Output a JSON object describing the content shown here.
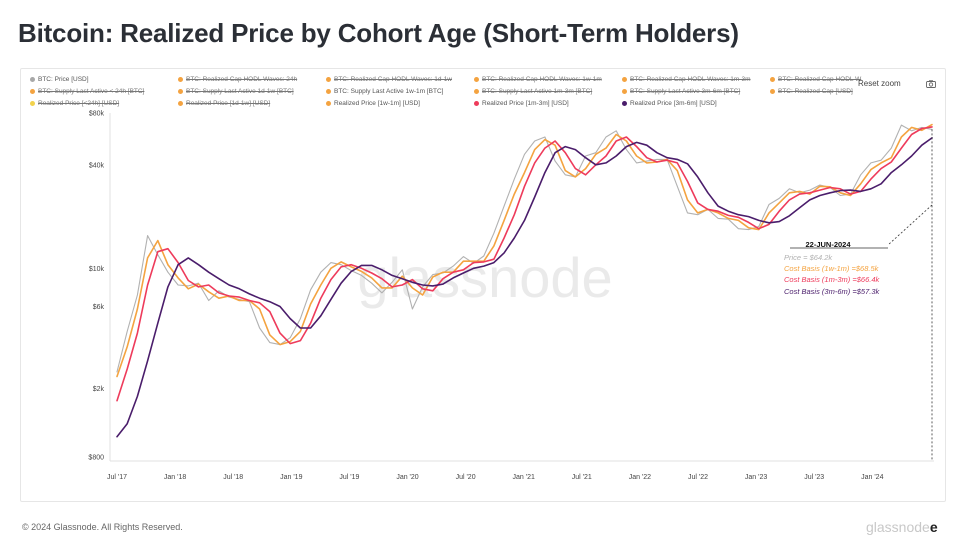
{
  "title": "Bitcoin: Realized Price by Cohort Age (Short-Term Holders)",
  "toolbar": {
    "reset_zoom": "Reset zoom"
  },
  "footer": "© 2024 Glassnode. All Rights Reserved.",
  "logo": {
    "visible": "e",
    "faded": "glassnode"
  },
  "watermark": "glassnode",
  "legend": [
    {
      "label": "BTC: Price [USD]",
      "color": "#a8a8a8",
      "active": true
    },
    {
      "label": "BTC: Realized Cap HODL Waves: 24h",
      "color": "#f4a340",
      "active": false
    },
    {
      "label": "BTC: Realized Cap HODL Waves: 1d-1w",
      "color": "#f4a340",
      "active": false
    },
    {
      "label": "BTC: Realized Cap HODL Waves: 1w-1m",
      "color": "#f4a340",
      "active": false
    },
    {
      "label": "BTC: Realized Cap HODL Waves: 1m-3m",
      "color": "#f4a340",
      "active": false
    },
    {
      "label": "BTC: Realized Cap HODL W",
      "color": "#f4a340",
      "active": false
    },
    {
      "label": "BTC: Supply Last Active < 24h [BTC]",
      "color": "#f4a340",
      "active": false
    },
    {
      "label": "BTC: Supply Last Active 1d-1w [BTC]",
      "color": "#f4a340",
      "active": false
    },
    {
      "label": "BTC: Supply Last Active 1w-1m [BTC]",
      "color": "#f4a340",
      "active": true
    },
    {
      "label": "BTC: Supply Last Active 1m-3m [BTC]",
      "color": "#f4a340",
      "active": false
    },
    {
      "label": "BTC: Supply Last Active 3m-6m [BTC]",
      "color": "#f4a340",
      "active": false
    },
    {
      "label": "BTC: Realized Cap [USD]",
      "color": "#f4a340",
      "active": false
    },
    {
      "label": "Realized Price [<24h] [USD]",
      "color": "#f2d24c",
      "active": false
    },
    {
      "label": "Realized Price [1d-1w] [USD]",
      "color": "#f4a340",
      "active": false
    },
    {
      "label": "Realized Price [1w-1m] [USD]",
      "color": "#f4a340",
      "active": true
    },
    {
      "label": "Realized Price [1m-3m] [USD]",
      "color": "#ee3b5b",
      "active": true
    },
    {
      "label": "Realized Price [3m-6m] [USD]",
      "color": "#4a1d6b",
      "active": true
    }
  ],
  "tooltip": {
    "date": "22-JUN-2024",
    "price": "Price = $64.2k",
    "cb1": "Cost Basis (1w-1m) =$68.5k",
    "cb2": "Cost Basis (1m-3m) =$66.4k",
    "cb3": "Cost Basis (3m-6m) =$57.3k",
    "price_color": "#b0b0b0",
    "cb1_color": "#f4a340",
    "cb2_color": "#ee3b5b",
    "cb3_color": "#4a1d6b"
  },
  "chart_data": {
    "type": "line",
    "title": "Bitcoin: Realized Price by Cohort Age (Short-Term Holders)",
    "y_scale": "log",
    "ylim": [
      800,
      80000
    ],
    "y_ticks": [
      {
        "label": "$80k",
        "value": 80000
      },
      {
        "label": "$40k",
        "value": 40000
      },
      {
        "label": "$10k",
        "value": 10000
      },
      {
        "label": "$6k",
        "value": 6000
      },
      {
        "label": "$2k",
        "value": 2000
      },
      {
        "label": "$800",
        "value": 800
      }
    ],
    "x_ticks": [
      "Jul '17",
      "Jan '18",
      "Jul '18",
      "Jan '19",
      "Jul '19",
      "Jan '20",
      "Jul '20",
      "Jan '21",
      "Jul '21",
      "Jan '22",
      "Jul '22",
      "Jan '23",
      "Jul '23",
      "Jan '24"
    ],
    "grid": false,
    "legend_position": "top",
    "x": [
      "Jul '17",
      "Sep '17",
      "Nov '17",
      "Dec '17",
      "Jan '18",
      "Feb '18",
      "Mar '18",
      "Apr '18",
      "May '18",
      "Jun '18",
      "Jul '18",
      "Aug '18",
      "Sep '18",
      "Oct '18",
      "Nov '18",
      "Dec '18",
      "Jan '19",
      "Mar '19",
      "Apr '19",
      "May '19",
      "Jun '19",
      "Jul '19",
      "Aug '19",
      "Sep '19",
      "Oct '19",
      "Nov '19",
      "Dec '19",
      "Jan '20",
      "Feb '20",
      "Mar '20",
      "Apr '20",
      "May '20",
      "Jun '20",
      "Jul '20",
      "Aug '20",
      "Sep '20",
      "Oct '20",
      "Nov '20",
      "Dec '20",
      "Jan '21",
      "Feb '21",
      "Mar '21",
      "Apr '21",
      "May '21",
      "Jun '21",
      "Jul '21",
      "Aug '21",
      "Sep '21",
      "Oct '21",
      "Nov '21",
      "Dec '21",
      "Jan '22",
      "Feb '22",
      "Mar '22",
      "Apr '22",
      "May '22",
      "Jun '22",
      "Jul '22",
      "Aug '22",
      "Sep '22",
      "Oct '22",
      "Nov '22",
      "Dec '22",
      "Jan '23",
      "Feb '23",
      "Mar '23",
      "Apr '23",
      "May '23",
      "Jun '23",
      "Jul '23",
      "Aug '23",
      "Sep '23",
      "Oct '23",
      "Nov '23",
      "Dec '23",
      "Jan '24",
      "Feb '24",
      "Mar '24",
      "Apr '24",
      "May '24",
      "Jun '24"
    ],
    "series": [
      {
        "name": "BTC: Price [USD]",
        "color": "#a8a8a8",
        "values": [
          2500,
          4300,
          7000,
          15500,
          12000,
          9500,
          8000,
          7900,
          8200,
          6500,
          7400,
          6800,
          6600,
          6400,
          4500,
          3700,
          3600,
          3950,
          5100,
          7500,
          9500,
          10800,
          10500,
          9700,
          9100,
          8200,
          7200,
          8300,
          9800,
          5800,
          7800,
          9200,
          9400,
          10300,
          11700,
          10700,
          11800,
          16000,
          23000,
          33000,
          46000,
          55000,
          58000,
          42000,
          35000,
          34000,
          45000,
          47000,
          58000,
          63000,
          49000,
          41000,
          42000,
          43000,
          43000,
          30000,
          21000,
          20500,
          22000,
          19500,
          19300,
          17000,
          16800,
          17500,
          23500,
          25500,
          29000,
          27500,
          28500,
          30500,
          29500,
          26500,
          27000,
          35000,
          41000,
          42500,
          50000,
          68000,
          63000,
          66000,
          64200
        ]
      },
      {
        "name": "Realized Price [1w-1m] [USD]",
        "color": "#f4a340",
        "values": [
          2350,
          3500,
          5800,
          11500,
          14500,
          10500,
          8800,
          7600,
          8100,
          7300,
          6700,
          6900,
          6500,
          6500,
          5800,
          4100,
          3600,
          3750,
          4300,
          6200,
          8000,
          10000,
          10900,
          10200,
          9600,
          8800,
          7700,
          7700,
          9000,
          7700,
          7000,
          8900,
          9500,
          9500,
          11000,
          11000,
          11000,
          13500,
          19000,
          27000,
          36000,
          49000,
          56000,
          52000,
          37000,
          34000,
          38000,
          46000,
          50000,
          60000,
          55000,
          45000,
          41000,
          41500,
          43000,
          37000,
          25000,
          21000,
          22000,
          21000,
          19500,
          19000,
          17200,
          16800,
          21000,
          24000,
          27500,
          28000,
          27000,
          30000,
          29800,
          27500,
          26500,
          31000,
          37500,
          41000,
          44000,
          58000,
          66000,
          63500,
          68500
        ]
      },
      {
        "name": "Realized Price [1m-3m] [USD]",
        "color": "#ee3b5b",
        "values": [
          1700,
          2600,
          4200,
          8000,
          12500,
          13000,
          10800,
          8500,
          7800,
          8000,
          7200,
          6900,
          6800,
          6500,
          6300,
          5600,
          4200,
          3650,
          3800,
          4800,
          6700,
          8600,
          10200,
          10500,
          10000,
          9400,
          8700,
          7800,
          8000,
          8600,
          7600,
          7400,
          8700,
          9500,
          9800,
          10800,
          10900,
          11300,
          15000,
          20500,
          30000,
          41000,
          50000,
          55000,
          47000,
          38000,
          35000,
          40000,
          45000,
          55000,
          58000,
          51000,
          44000,
          41500,
          42500,
          41000,
          32000,
          24000,
          22000,
          21500,
          20300,
          19800,
          18500,
          17000,
          18000,
          21500,
          25000,
          27000,
          27500,
          28500,
          29500,
          29000,
          27000,
          28000,
          33000,
          38000,
          41500,
          50000,
          60000,
          65000,
          66400
        ]
      },
      {
        "name": "Realized Price [3m-6m] [USD]",
        "color": "#4a1d6b",
        "values": [
          1050,
          1250,
          1800,
          2900,
          4800,
          7800,
          10500,
          11500,
          10500,
          9500,
          8700,
          8000,
          7600,
          7100,
          6700,
          6400,
          6000,
          5100,
          4500,
          4500,
          5300,
          6600,
          8200,
          9600,
          10400,
          10400,
          9800,
          9100,
          8700,
          8300,
          8000,
          7900,
          8100,
          8800,
          9400,
          10000,
          10300,
          10800,
          12300,
          15000,
          19000,
          26000,
          36000,
          47000,
          51000,
          49000,
          44000,
          40000,
          41000,
          45000,
          51000,
          54000,
          52000,
          47000,
          44000,
          43000,
          40500,
          34000,
          27500,
          23000,
          21500,
          20500,
          20000,
          19000,
          18400,
          18700,
          20200,
          22500,
          25000,
          26500,
          27500,
          28300,
          28500,
          28000,
          29000,
          31000,
          36000,
          40000,
          45000,
          52000,
          57300
        ]
      }
    ]
  }
}
